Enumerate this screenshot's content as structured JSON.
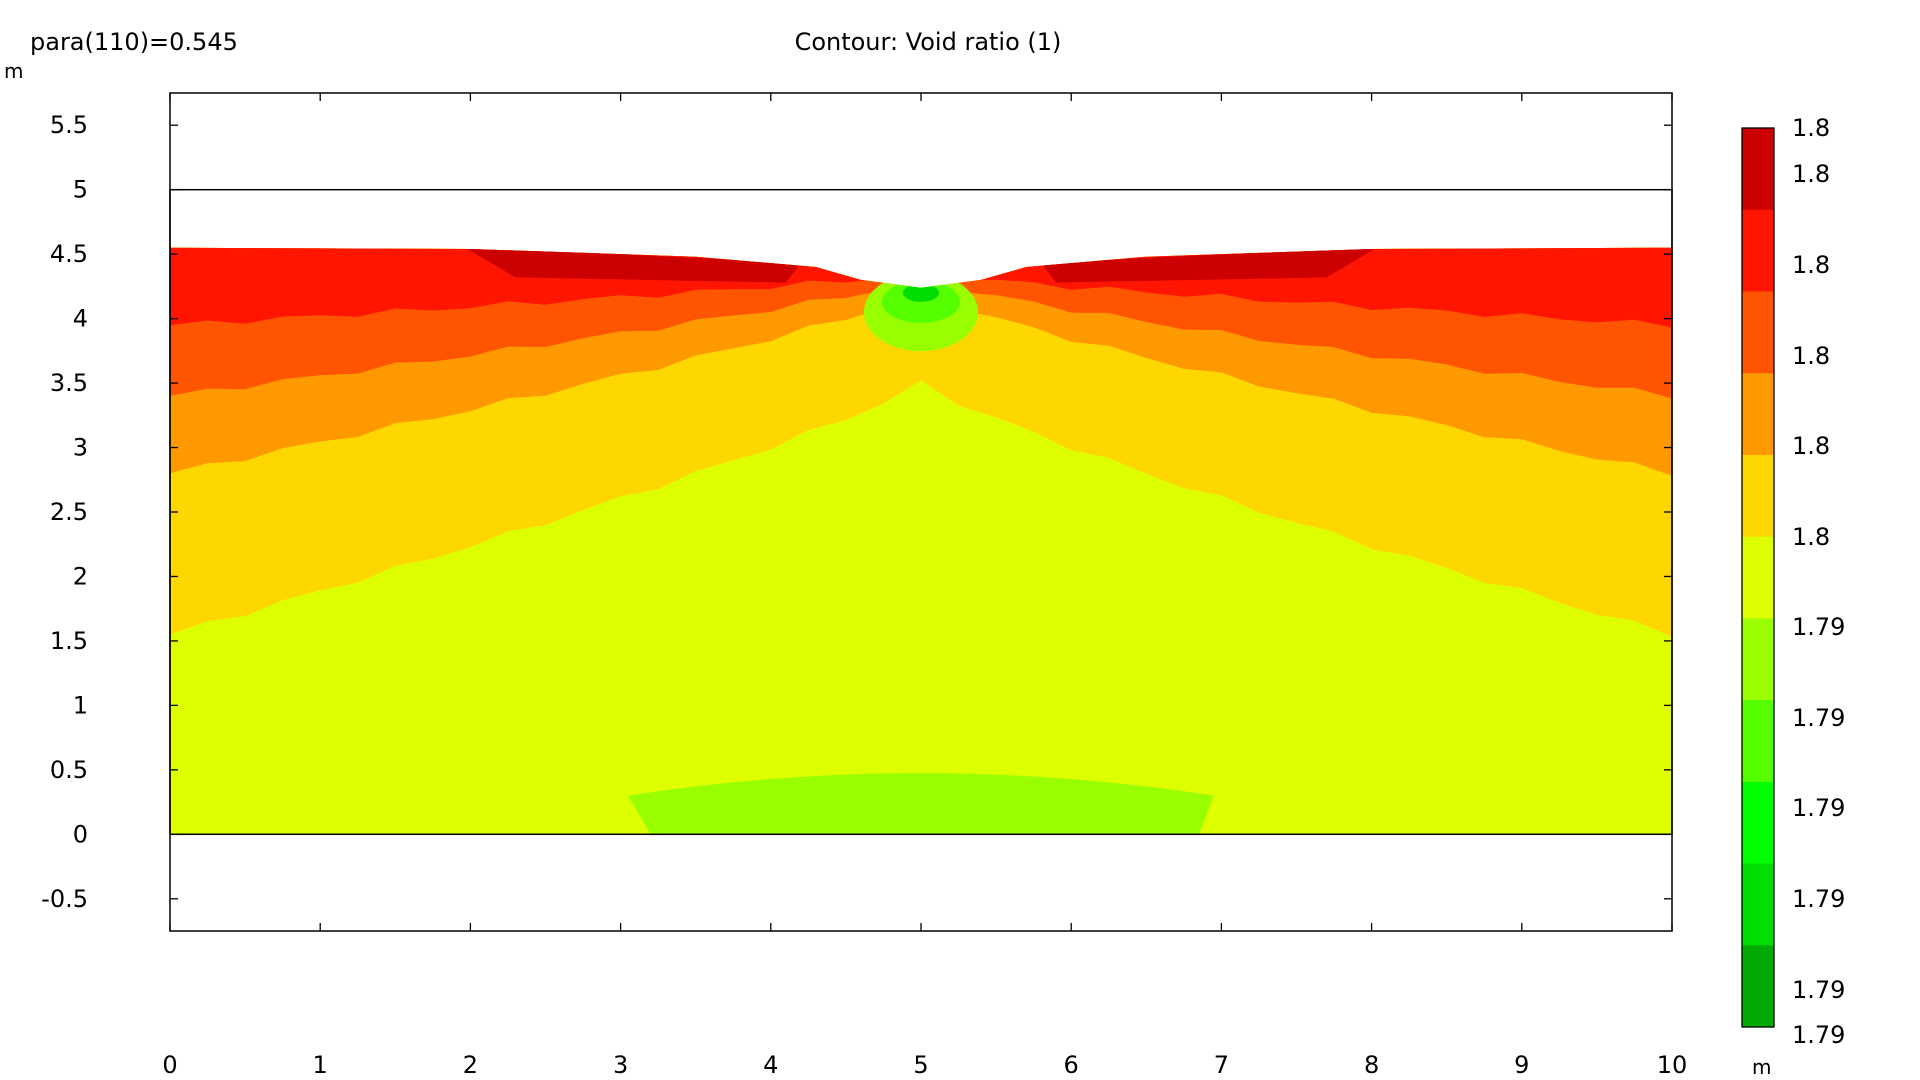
{
  "header": {
    "param_label": "para(110)=0.545",
    "title": "Contour: Void ratio (1)"
  },
  "chart_data": {
    "type": "heatmap",
    "title": "Contour: Void ratio (1)",
    "xlabel": "m",
    "ylabel": "m",
    "xlim": [
      -0.5,
      10.5
    ],
    "ylim": [
      -0.75,
      5.75
    ],
    "x_ticks": [
      0,
      1,
      2,
      3,
      4,
      5,
      6,
      7,
      8,
      9,
      10
    ],
    "y_ticks": [
      -0.5,
      0,
      0.5,
      1,
      1.5,
      2,
      2.5,
      3,
      3.5,
      4,
      4.5,
      5,
      5.5
    ],
    "domain_box": {
      "x": [
        0,
        10
      ],
      "y": [
        0,
        5
      ]
    },
    "surface_profile": [
      [
        0,
        4.55
      ],
      [
        2,
        4.54
      ],
      [
        3.5,
        4.48
      ],
      [
        4.3,
        4.4
      ],
      [
        4.6,
        4.3
      ],
      [
        5,
        4.24
      ],
      [
        5.4,
        4.3
      ],
      [
        5.7,
        4.4
      ],
      [
        6.5,
        4.48
      ],
      [
        8,
        4.54
      ],
      [
        10,
        4.55
      ]
    ],
    "colorbar": {
      "labels": [
        "1.8",
        "1.8",
        "1.8",
        "1.8",
        "1.8",
        "1.8",
        "1.79",
        "1.79",
        "1.79",
        "1.79",
        "1.79",
        "1.79"
      ],
      "colors": [
        "#cc0000",
        "#ff1500",
        "#ff5500",
        "#ff9900",
        "#ffd700",
        "#ddff00",
        "#99ff00",
        "#55ff00",
        "#00ff00",
        "#00dd00",
        "#00aa00"
      ]
    },
    "bands": [
      {
        "level": 1,
        "color": "#ff1500",
        "left_bottom": 3.95,
        "center_bottom": 4.35
      },
      {
        "level": 2,
        "color": "#ff5500",
        "left_bottom": 3.4,
        "center_bottom": 4.3
      },
      {
        "level": 3,
        "color": "#ff9900",
        "left_bottom": 2.8,
        "center_bottom": 4.2
      },
      {
        "level": 4,
        "color": "#ffd700",
        "left_bottom": 1.55,
        "center_bottom": 3.5
      },
      {
        "level": 5,
        "color": "#ddff00"
      }
    ]
  }
}
